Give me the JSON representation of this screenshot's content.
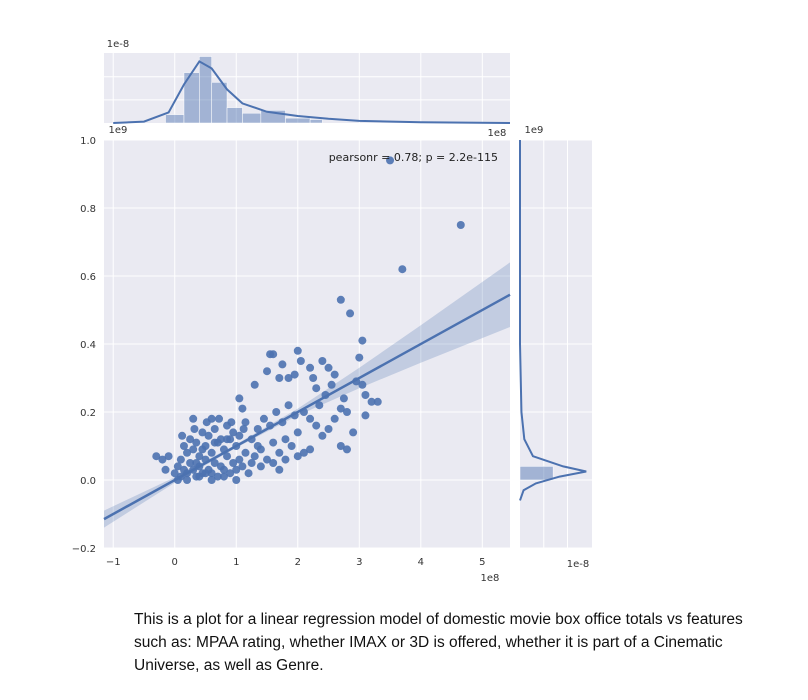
{
  "chart_data": {
    "type": "scatter",
    "title": "",
    "xlabel": "",
    "ylabel": "",
    "xlim": [
      -1.15,
      5.45
    ],
    "ylim": [
      -0.2,
      1.0
    ],
    "x_ticks": [
      -1,
      0,
      1,
      2,
      3,
      4,
      5
    ],
    "y_ticks": [
      -0.2,
      0.0,
      0.2,
      0.4,
      0.6,
      0.8,
      1.0
    ],
    "x_offset_label": "1e8",
    "y_offset_label": "1e9",
    "annotation": "pearsonr = 0.78; p = 2.2e-115",
    "points": [
      [
        -0.3,
        0.07
      ],
      [
        -0.2,
        0.06
      ],
      [
        -0.1,
        0.07
      ],
      [
        -0.15,
        0.03
      ],
      [
        0,
        0.02
      ],
      [
        0.05,
        0.04
      ],
      [
        0.1,
        0.01
      ],
      [
        0.15,
        0.03
      ],
      [
        0.2,
        0.02
      ],
      [
        0.25,
        0.05
      ],
      [
        0.3,
        0.03
      ],
      [
        0.35,
        0.01
      ],
      [
        0.4,
        0.04
      ],
      [
        0.45,
        0.02
      ],
      [
        0.5,
        0.06
      ],
      [
        0.55,
        0.03
      ],
      [
        0.6,
        0.02
      ],
      [
        0.65,
        0.05
      ],
      [
        0.7,
        0.01
      ],
      [
        0.75,
        0.04
      ],
      [
        0.8,
        0.03
      ],
      [
        0.85,
        0.07
      ],
      [
        0.9,
        0.02
      ],
      [
        0.95,
        0.05
      ],
      [
        1.0,
        0.03
      ],
      [
        1.05,
        0.06
      ],
      [
        1.1,
        0.04
      ],
      [
        1.15,
        0.08
      ],
      [
        1.2,
        0.02
      ],
      [
        1.25,
        0.05
      ],
      [
        0.1,
        0.06
      ],
      [
        0.2,
        0.08
      ],
      [
        0.3,
        0.09
      ],
      [
        0.4,
        0.07
      ],
      [
        0.5,
        0.1
      ],
      [
        0.6,
        0.08
      ],
      [
        0.7,
        0.11
      ],
      [
        0.8,
        0.09
      ],
      [
        0.9,
        0.12
      ],
      [
        1.0,
        0.1
      ],
      [
        0.15,
        0.1
      ],
      [
        0.25,
        0.12
      ],
      [
        0.35,
        0.11
      ],
      [
        0.45,
        0.14
      ],
      [
        0.55,
        0.13
      ],
      [
        0.65,
        0.15
      ],
      [
        0.75,
        0.12
      ],
      [
        0.85,
        0.16
      ],
      [
        0.95,
        0.14
      ],
      [
        1.05,
        0.13
      ],
      [
        0.12,
        0.13
      ],
      [
        0.32,
        0.15
      ],
      [
        0.52,
        0.17
      ],
      [
        0.72,
        0.18
      ],
      [
        0.92,
        0.17
      ],
      [
        1.12,
        0.15
      ],
      [
        0.3,
        0.18
      ],
      [
        0.6,
        0.18
      ],
      [
        0.35,
        0.05
      ],
      [
        0.5,
        0.02
      ],
      [
        1.3,
        0.07
      ],
      [
        1.4,
        0.09
      ],
      [
        1.5,
        0.06
      ],
      [
        1.6,
        0.11
      ],
      [
        1.7,
        0.08
      ],
      [
        1.8,
        0.12
      ],
      [
        1.9,
        0.1
      ],
      [
        2.0,
        0.14
      ],
      [
        1.35,
        0.15
      ],
      [
        1.45,
        0.18
      ],
      [
        1.55,
        0.16
      ],
      [
        1.65,
        0.2
      ],
      [
        1.75,
        0.17
      ],
      [
        1.85,
        0.22
      ],
      [
        1.95,
        0.19
      ],
      [
        1.6,
        0.05
      ],
      [
        1.8,
        0.06
      ],
      [
        2.0,
        0.07
      ],
      [
        2.1,
        0.08
      ],
      [
        2.2,
        0.09
      ],
      [
        1.1,
        0.21
      ],
      [
        1.05,
        0.24
      ],
      [
        1.3,
        0.28
      ],
      [
        1.5,
        0.32
      ],
      [
        1.55,
        0.37
      ],
      [
        1.6,
        0.37
      ],
      [
        1.7,
        0.3
      ],
      [
        1.75,
        0.34
      ],
      [
        1.85,
        0.3
      ],
      [
        1.95,
        0.31
      ],
      [
        2.0,
        0.38
      ],
      [
        2.05,
        0.35
      ],
      [
        2.2,
        0.33
      ],
      [
        2.25,
        0.3
      ],
      [
        2.3,
        0.27
      ],
      [
        2.1,
        0.2
      ],
      [
        2.2,
        0.18
      ],
      [
        2.3,
        0.16
      ],
      [
        2.4,
        0.13
      ],
      [
        2.5,
        0.15
      ],
      [
        2.35,
        0.22
      ],
      [
        2.45,
        0.25
      ],
      [
        2.55,
        0.28
      ],
      [
        2.6,
        0.31
      ],
      [
        2.4,
        0.35
      ],
      [
        2.5,
        0.33
      ],
      [
        2.6,
        0.18
      ],
      [
        2.7,
        0.21
      ],
      [
        2.75,
        0.24
      ],
      [
        2.8,
        0.2
      ],
      [
        2.9,
        0.14
      ],
      [
        2.7,
        0.1
      ],
      [
        2.8,
        0.09
      ],
      [
        2.95,
        0.29
      ],
      [
        3.05,
        0.28
      ],
      [
        3.0,
        0.36
      ],
      [
        3.05,
        0.41
      ],
      [
        2.7,
        0.53
      ],
      [
        2.85,
        0.49
      ],
      [
        3.1,
        0.25
      ],
      [
        3.2,
        0.23
      ],
      [
        3.3,
        0.23
      ],
      [
        3.1,
        0.19
      ],
      [
        3.5,
        0.94
      ],
      [
        3.7,
        0.62
      ],
      [
        4.65,
        0.75
      ],
      [
        1.7,
        0.03
      ],
      [
        1.4,
        0.04
      ],
      [
        0.05,
        0.0
      ],
      [
        0.2,
        0.0
      ],
      [
        0.4,
        0.01
      ],
      [
        0.6,
        0.0
      ],
      [
        0.8,
        0.01
      ],
      [
        1.0,
        0.0
      ],
      [
        0.45,
        0.09
      ],
      [
        0.65,
        0.11
      ],
      [
        0.85,
        0.12
      ],
      [
        1.25,
        0.12
      ],
      [
        1.35,
        0.1
      ],
      [
        1.15,
        0.17
      ]
    ],
    "regression_line": {
      "x": [
        -1.15,
        5.45
      ],
      "y": [
        -0.115,
        0.545
      ]
    },
    "confidence_band": {
      "x": [
        -1.15,
        0.0,
        1.0,
        2.0,
        3.0,
        4.0,
        5.45
      ],
      "lower": [
        -0.14,
        -0.008,
        0.095,
        0.19,
        0.27,
        0.345,
        0.45
      ],
      "upper": [
        -0.09,
        0.008,
        0.105,
        0.21,
        0.33,
        0.455,
        0.64
      ]
    },
    "marginal_x": {
      "offset_label": "1e-8",
      "offset_label_lower": "1e9",
      "offset_label_right": "1e8",
      "bins_x": [
        -0.15,
        0.15,
        0.4,
        0.6,
        0.85,
        1.1,
        1.4,
        1.8,
        2.2,
        2.4
      ],
      "bins_h": [
        0.12,
        0.72,
        0.95,
        0.58,
        0.22,
        0.14,
        0.18,
        0.07,
        0.05
      ],
      "kde": [
        [
          -1.0,
          0.0
        ],
        [
          -0.5,
          0.02
        ],
        [
          -0.1,
          0.15
        ],
        [
          0.15,
          0.55
        ],
        [
          0.4,
          0.88
        ],
        [
          0.6,
          0.78
        ],
        [
          0.85,
          0.48
        ],
        [
          1.1,
          0.28
        ],
        [
          1.5,
          0.16
        ],
        [
          2.0,
          0.1
        ],
        [
          2.5,
          0.06
        ],
        [
          3.0,
          0.03
        ],
        [
          4.0,
          0.01
        ],
        [
          5.45,
          0.0
        ]
      ]
    },
    "marginal_y": {
      "offset_label_top": "1e9",
      "offset_label": "1e-8",
      "bins_y": [
        0.0,
        0.04
      ],
      "bins_w": [
        0.46
      ],
      "kde": [
        [
          1.0,
          0.0
        ],
        [
          0.4,
          0.0
        ],
        [
          0.2,
          0.02
        ],
        [
          0.12,
          0.06
        ],
        [
          0.07,
          0.18
        ],
        [
          0.04,
          0.6
        ],
        [
          0.025,
          0.92
        ],
        [
          0.01,
          0.55
        ],
        [
          -0.01,
          0.22
        ],
        [
          -0.03,
          0.05
        ],
        [
          -0.06,
          0.0
        ]
      ]
    },
    "colors": {
      "point": "#4c72b0",
      "line": "#4c72b0",
      "band": "#4c72b0",
      "background": "#eaeaf2",
      "grid": "#ffffff"
    }
  },
  "caption": "This is a plot for a linear regression model of domestic movie box office totals vs features such as: MPAA rating, whether IMAX or 3D is offered, whether it is part of a Cinematic Universe, as well as Genre."
}
